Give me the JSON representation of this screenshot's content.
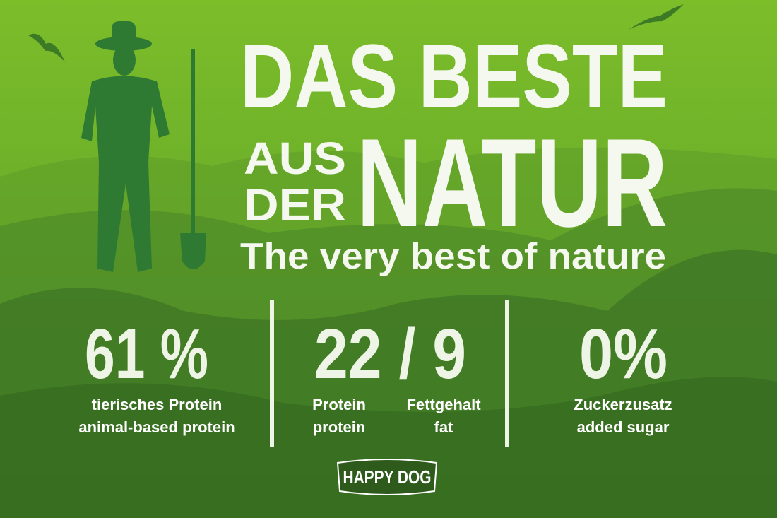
{
  "headline": {
    "line1": "DAS BESTE",
    "small1": "AUS",
    "small2": "DER",
    "big": "NATUR"
  },
  "subtitle": "The very best of nature",
  "stats": [
    {
      "value": "61 %",
      "labels": [
        {
          "de": "tierisches Protein",
          "en": "animal-based protein"
        }
      ]
    },
    {
      "value": "22 / 9",
      "labels": [
        {
          "de": "Protein",
          "en": "protein"
        },
        {
          "de": "Fettgehalt",
          "en": "fat"
        }
      ]
    },
    {
      "value": "0%",
      "labels": [
        {
          "de": "Zuckerzusatz",
          "en": "added sugar"
        }
      ]
    }
  ],
  "logo": "HAPPY DOG"
}
